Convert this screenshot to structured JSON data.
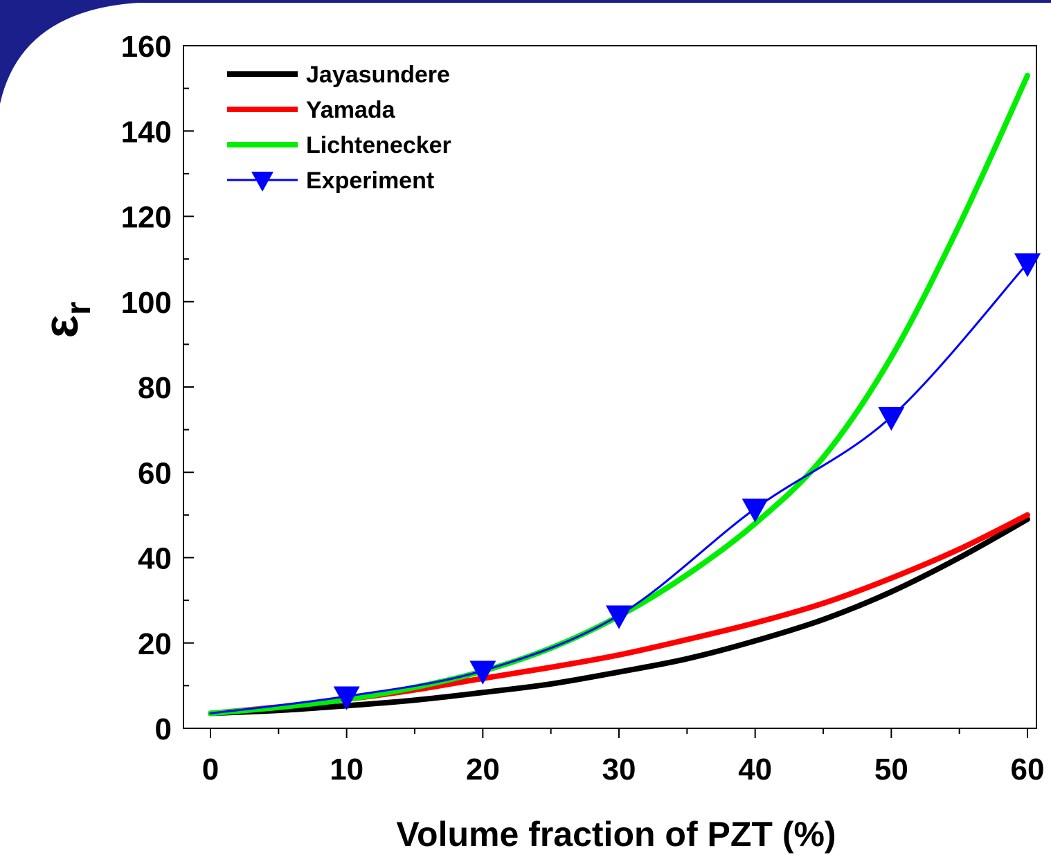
{
  "chart_data": {
    "type": "line",
    "xlabel": "Volume fraction of PZT (%)",
    "ylabel_symbol": "ε",
    "ylabel_subscript": "r",
    "xlim": [
      0,
      60
    ],
    "ylim": [
      0,
      160
    ],
    "x_ticks": [
      0,
      10,
      20,
      30,
      40,
      50,
      60
    ],
    "y_ticks": [
      0,
      20,
      40,
      60,
      80,
      100,
      120,
      140,
      160
    ],
    "x_tick_labels": [
      "0",
      "10",
      "20",
      "30",
      "40",
      "50",
      "60"
    ],
    "y_tick_labels": [
      "0",
      "20",
      "40",
      "60",
      "80",
      "100",
      "120",
      "140",
      "160"
    ],
    "grid": false,
    "legend_position": "top-left",
    "series": [
      {
        "name": "Jayasundere",
        "style": "line",
        "color": "#000000",
        "x": [
          0,
          5,
          10,
          15,
          20,
          25,
          30,
          35,
          40,
          45,
          50,
          55,
          60
        ],
        "y": [
          3.5,
          4.2,
          5.3,
          6.6,
          8.4,
          10.4,
          13.2,
          16.3,
          20.5,
          25.5,
          32.0,
          40.0,
          49.0
        ]
      },
      {
        "name": "Yamada",
        "style": "line",
        "color": "#ff0000",
        "x": [
          0,
          5,
          10,
          15,
          20,
          25,
          30,
          35,
          40,
          45,
          50,
          55,
          60
        ],
        "y": [
          3.5,
          5.0,
          6.8,
          9.0,
          11.7,
          14.3,
          17.2,
          20.8,
          24.7,
          29.3,
          35.2,
          42.0,
          50.0
        ]
      },
      {
        "name": "Lichtenecker",
        "style": "line",
        "color": "#00ee00",
        "x": [
          0,
          5,
          10,
          15,
          20,
          25,
          30,
          35,
          40,
          45,
          50,
          55,
          60
        ],
        "y": [
          3.5,
          4.9,
          6.8,
          9.6,
          13.4,
          18.8,
          26.3,
          36.0,
          48.0,
          63.5,
          87.0,
          118.0,
          153.0
        ]
      },
      {
        "name": "Experiment",
        "style": "line-marker",
        "marker": "triangle-down",
        "color": "#0000ff",
        "x": [
          0,
          10,
          20,
          30,
          40,
          50,
          60
        ],
        "y": [
          3.5,
          7.5,
          13.5,
          26.5,
          51.5,
          73.0,
          109.0
        ]
      }
    ]
  },
  "colors": {
    "border_arc": "#1a1f8c",
    "background": "#ffffff"
  }
}
